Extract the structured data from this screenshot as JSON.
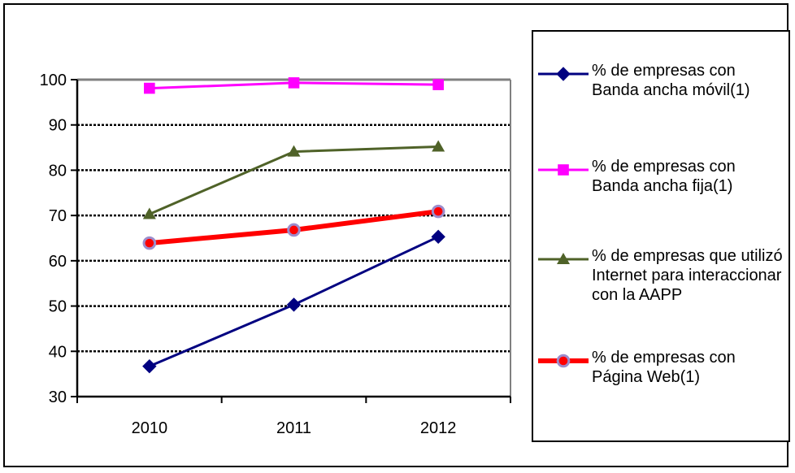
{
  "chart_data": {
    "type": "line",
    "categories": [
      "2010",
      "2011",
      "2012"
    ],
    "ylim": [
      30,
      100
    ],
    "yticks": [
      30,
      40,
      50,
      60,
      70,
      80,
      90,
      100
    ],
    "grid": true,
    "legend_position": "right",
    "series": [
      {
        "name": "% de empresas con Banda ancha móvil(1)",
        "values": [
          36.7,
          50.3,
          65.3
        ],
        "color": "#000080",
        "marker": "diamond",
        "line_width": 3
      },
      {
        "name": "% de empresas con Banda ancha fija(1)",
        "values": [
          98.1,
          99.3,
          98.9
        ],
        "color": "#ff00ff",
        "marker": "square",
        "line_width": 3
      },
      {
        "name": "% de empresas que utilizó Internet para interaccionar con la AAPP",
        "values": [
          70.3,
          84.1,
          85.2
        ],
        "color": "#4f6228",
        "marker": "triangle",
        "line_width": 3
      },
      {
        "name": "% de empresas con Página Web(1)",
        "values": [
          63.9,
          66.8,
          70.9
        ],
        "color": "#ff0000",
        "marker": "circle",
        "marker_fill": "#ff0000",
        "marker_stroke": "#9c8ccc",
        "line_width": 6
      }
    ]
  }
}
